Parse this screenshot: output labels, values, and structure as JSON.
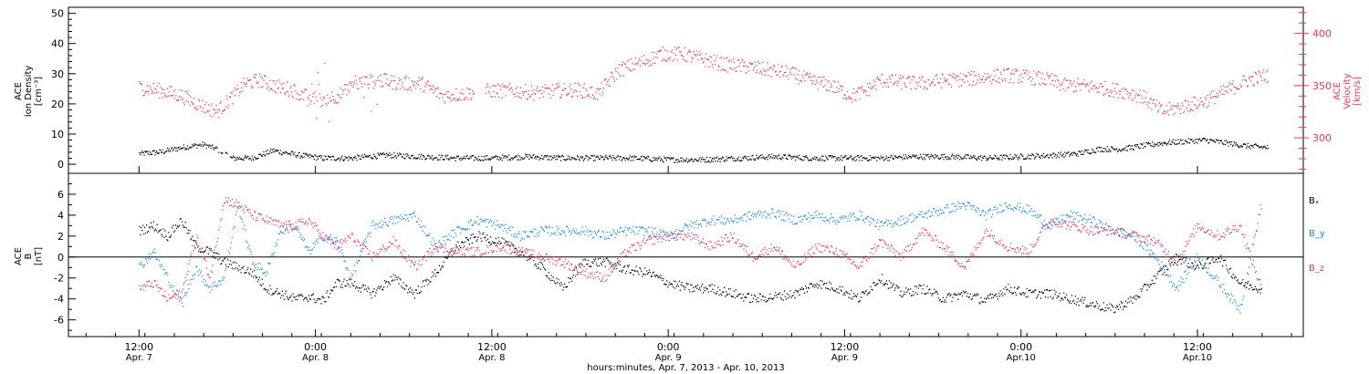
{
  "colors": {
    "black": "#000000",
    "pink": "#e8365f",
    "blue": "#1a86e0"
  },
  "chart_data": [
    {
      "type": "scatter",
      "panel": "top",
      "left_axis": {
        "label_lines": [
          "ACE",
          "Ion Density",
          "[cm⁻³]"
        ],
        "ylim": [
          -3,
          52
        ],
        "ticks": [
          0,
          10,
          20,
          30,
          40,
          50
        ]
      },
      "right_axis": {
        "label_lines": [
          "ACE",
          "Velocity",
          "[km/s]"
        ],
        "ylim": [
          266,
          425
        ],
        "ticks": [
          300,
          350,
          400
        ]
      },
      "series": [
        {
          "axis": "left",
          "color": "black",
          "x": [
            0.0,
            0.06,
            0.12,
            0.18,
            0.22,
            0.26,
            0.32,
            0.38,
            0.45,
            0.52,
            0.6,
            0.7,
            0.8,
            0.9,
            1.0,
            1.1,
            1.2,
            1.3,
            1.4,
            1.5,
            1.6,
            1.7,
            1.8,
            1.9,
            2.0,
            2.1,
            2.2,
            2.3,
            2.4,
            2.5,
            2.6,
            2.66,
            2.72,
            2.78,
            2.84,
            2.9,
            2.96,
            3.02,
            3.08,
            3.14,
            3.2
          ],
          "y": [
            3.5,
            4.0,
            5.5,
            6.5,
            5.0,
            2.0,
            2.0,
            4.5,
            3.0,
            2.0,
            2.0,
            3.0,
            2.5,
            2.0,
            2.0,
            2.5,
            2.0,
            2.0,
            2.0,
            1.5,
            1.5,
            2.0,
            2.5,
            2.0,
            2.0,
            2.0,
            2.5,
            2.5,
            2.0,
            2.5,
            3.0,
            3.5,
            5.0,
            5.0,
            6.0,
            7.0,
            7.5,
            8.0,
            7.0,
            6.0,
            5.5
          ]
        },
        {
          "axis": "right",
          "color": "pink",
          "x": [
            0.0,
            0.06,
            0.12,
            0.18,
            0.22,
            0.26,
            0.3,
            0.34,
            0.38,
            0.44,
            0.5,
            0.56,
            0.62,
            0.68,
            0.74,
            0.8,
            0.86,
            0.92,
            0.96,
            1.0,
            1.06,
            1.12,
            1.18,
            1.24,
            1.3,
            1.36,
            1.42,
            1.48,
            1.54,
            1.6,
            1.66,
            1.72,
            1.78,
            1.84,
            1.9,
            1.96,
            2.02,
            2.06,
            2.1,
            2.16,
            2.22,
            2.28,
            2.34,
            2.4,
            2.46,
            2.52,
            2.58,
            2.62,
            2.66,
            2.72,
            2.78,
            2.84,
            2.9,
            2.96,
            3.02,
            3.08,
            3.14,
            3.2
          ],
          "y": [
            348,
            345,
            340,
            330,
            325,
            338,
            352,
            355,
            350,
            345,
            335,
            340,
            352,
            355,
            352,
            352,
            340,
            342,
            344,
            345,
            345,
            343,
            345,
            346,
            342,
            365,
            372,
            380,
            380,
            375,
            370,
            368,
            365,
            362,
            355,
            350,
            340,
            345,
            355,
            353,
            352,
            355,
            356,
            358,
            360,
            358,
            355,
            350,
            350,
            348,
            345,
            340,
            325,
            330,
            335,
            345,
            355,
            360
          ]
        }
      ],
      "events": [
        0.3,
        1.95
      ]
    },
    {
      "type": "line",
      "panel": "bottom",
      "y_axis": {
        "label_lines": [
          "ACE",
          "B",
          "[nT]"
        ],
        "ylim": [
          -7.6,
          8.0
        ],
        "ticks": [
          -6,
          -4,
          -2,
          0,
          2,
          4,
          6
        ]
      },
      "legend": {
        "placement": "right"
      },
      "series": [
        {
          "name": "Bₓ",
          "color": "black",
          "x": [
            0.0,
            0.04,
            0.08,
            0.12,
            0.16,
            0.2,
            0.24,
            0.28,
            0.32,
            0.36,
            0.4,
            0.44,
            0.48,
            0.52,
            0.56,
            0.6,
            0.66,
            0.72,
            0.78,
            0.84,
            0.9,
            0.96,
            1.02,
            1.08,
            1.14,
            1.2,
            1.26,
            1.32,
            1.38,
            1.44,
            1.5,
            1.56,
            1.62,
            1.68,
            1.74,
            1.8,
            1.86,
            1.92,
            1.98,
            2.04,
            2.1,
            2.16,
            2.22,
            2.28,
            2.34,
            2.4,
            2.46,
            2.52,
            2.58,
            2.64,
            2.7,
            2.76,
            2.82,
            2.88,
            2.94,
            3.0,
            3.06,
            3.12,
            3.18
          ],
          "y": [
            2.5,
            3.0,
            2.0,
            3.5,
            1.0,
            0.5,
            -0.5,
            -1.0,
            -1.5,
            -3.0,
            -3.5,
            -4.0,
            -3.8,
            -4.2,
            -2.5,
            -2.5,
            -3.5,
            -2.0,
            -3.5,
            -1.5,
            1.0,
            2.0,
            1.5,
            0.5,
            -1.0,
            -3.0,
            -0.5,
            -0.5,
            -1.2,
            -1.5,
            -2.5,
            -3.0,
            -3.0,
            -3.5,
            -4.0,
            -3.8,
            -3.5,
            -2.5,
            -3.0,
            -4.0,
            -2.0,
            -3.5,
            -3.0,
            -4.0,
            -3.5,
            -4.2,
            -3.0,
            -3.5,
            -3.5,
            -4.0,
            -4.5,
            -5.0,
            -4.0,
            -2.0,
            0.0,
            -1.0,
            0.0,
            -2.5,
            -3.0
          ]
        },
        {
          "name": "B_y",
          "color": "blue",
          "x": [
            0.0,
            0.04,
            0.08,
            0.12,
            0.16,
            0.2,
            0.24,
            0.28,
            0.32,
            0.36,
            0.4,
            0.44,
            0.48,
            0.52,
            0.56,
            0.6,
            0.66,
            0.72,
            0.78,
            0.84,
            0.9,
            0.96,
            1.02,
            1.08,
            1.14,
            1.2,
            1.26,
            1.32,
            1.38,
            1.44,
            1.5,
            1.56,
            1.62,
            1.68,
            1.74,
            1.8,
            1.86,
            1.92,
            1.98,
            2.04,
            2.1,
            2.16,
            2.22,
            2.28,
            2.34,
            2.4,
            2.46,
            2.52,
            2.58,
            2.64,
            2.7,
            2.76,
            2.82,
            2.88,
            2.94,
            3.0,
            3.06,
            3.12,
            3.18
          ],
          "y": [
            -1.0,
            0.5,
            -2.0,
            -4.5,
            -1.0,
            -3.0,
            -2.0,
            5.0,
            -0.5,
            -1.5,
            2.5,
            3.0,
            0.5,
            2.0,
            1.5,
            -2.0,
            3.0,
            3.5,
            4.0,
            1.0,
            2.5,
            3.5,
            3.0,
            2.0,
            2.5,
            2.5,
            2.5,
            2.0,
            2.5,
            2.5,
            2.0,
            3.0,
            3.5,
            3.5,
            4.0,
            4.2,
            3.5,
            4.0,
            3.5,
            4.0,
            3.0,
            3.5,
            4.0,
            4.5,
            5.0,
            4.0,
            5.0,
            4.5,
            3.0,
            4.0,
            3.5,
            2.5,
            2.0,
            0.0,
            -3.0,
            0.0,
            -2.5,
            -5.0,
            5.0
          ]
        },
        {
          "name": "B_z",
          "color": "pink",
          "x": [
            0.0,
            0.04,
            0.08,
            0.12,
            0.16,
            0.2,
            0.24,
            0.28,
            0.32,
            0.36,
            0.4,
            0.44,
            0.48,
            0.52,
            0.56,
            0.6,
            0.66,
            0.72,
            0.78,
            0.84,
            0.9,
            0.96,
            1.02,
            1.08,
            1.14,
            1.2,
            1.26,
            1.32,
            1.38,
            1.44,
            1.5,
            1.56,
            1.62,
            1.68,
            1.74,
            1.8,
            1.86,
            1.92,
            1.98,
            2.04,
            2.1,
            2.16,
            2.22,
            2.28,
            2.34,
            2.4,
            2.46,
            2.52,
            2.58,
            2.64,
            2.7,
            2.76,
            2.82,
            2.88,
            2.94,
            3.0,
            3.06,
            3.12,
            3.18
          ],
          "y": [
            -3.0,
            -2.5,
            -4.0,
            -3.5,
            2.0,
            -2.0,
            5.5,
            5.0,
            4.0,
            3.5,
            3.0,
            3.0,
            3.5,
            2.0,
            1.0,
            2.0,
            0.0,
            1.5,
            -1.0,
            1.0,
            0.5,
            0.5,
            1.0,
            0.5,
            0.0,
            -0.5,
            -1.5,
            -2.0,
            0.5,
            1.5,
            2.0,
            2.0,
            1.0,
            2.0,
            0.0,
            1.0,
            -1.0,
            1.0,
            0.5,
            -1.0,
            1.5,
            0.0,
            2.5,
            1.0,
            -1.0,
            2.5,
            1.0,
            0.5,
            3.5,
            3.0,
            2.5,
            2.5,
            2.0,
            1.5,
            -0.5,
            3.0,
            2.0,
            3.0,
            -3.0
          ]
        }
      ]
    },
    {
      "type": "axis",
      "xlabel": "hours:minutes, Apr.  7, 2013 - Apr. 10, 2013",
      "xlim": [
        -0.2,
        3.3
      ],
      "ticks": [
        {
          "x": 0.0,
          "time": "12:00",
          "date": "Apr. 7"
        },
        {
          "x": 0.5,
          "time": "0:00",
          "date": "Apr. 8"
        },
        {
          "x": 1.0,
          "time": "12:00",
          "date": "Apr. 8"
        },
        {
          "x": 1.5,
          "time": "0:00",
          "date": "Apr. 9"
        },
        {
          "x": 2.0,
          "time": "12:00",
          "date": "Apr. 9"
        },
        {
          "x": 2.5,
          "time": "0:00",
          "date": "Apr.10"
        },
        {
          "x": 3.0,
          "time": "12:00",
          "date": "Apr.10"
        }
      ]
    }
  ]
}
